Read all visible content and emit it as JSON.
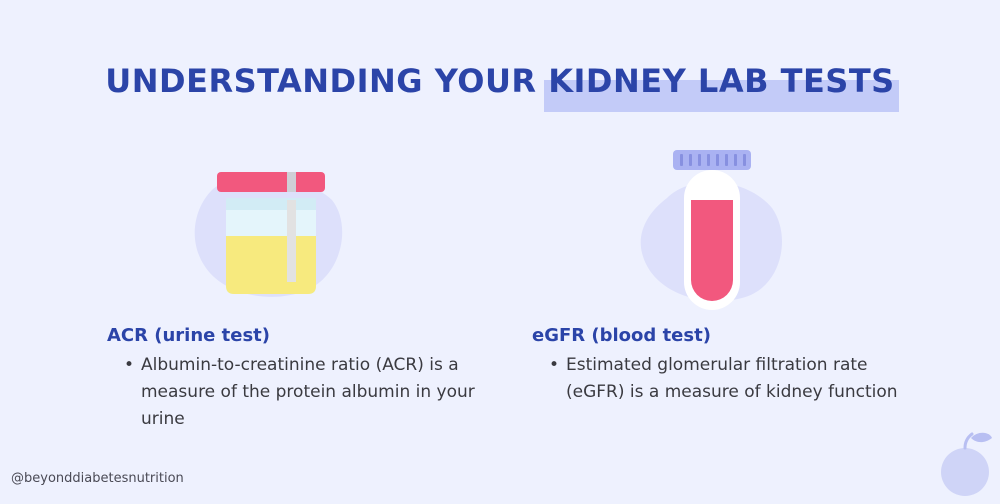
{
  "title": {
    "prefix": "UNDERSTANDING YOUR ",
    "highlight": "KIDNEY LAB TESTS"
  },
  "tests": [
    {
      "heading": "ACR (urine test)",
      "bullet": "Albumin-to-creatinine ratio (ACR) is a measure of the protein albumin in your urine",
      "icon": "urine-cup-icon"
    },
    {
      "heading": "eGFR (blood test)",
      "bullet": "Estimated glomerular filtration rate (eGFR) is a measure of kidney function",
      "icon": "test-tube-icon"
    }
  ],
  "footer": {
    "handle": "@beyonddiabetesnutrition"
  },
  "colors": {
    "background": "#eef1fe",
    "title": "#2b44a8",
    "highlight": "#c3cbf8",
    "accent_pink": "#f2587e",
    "urine_yellow": "#f7ea7e",
    "blob": "#dde0fb"
  },
  "logo": {
    "icon": "fruit-logo-icon"
  }
}
